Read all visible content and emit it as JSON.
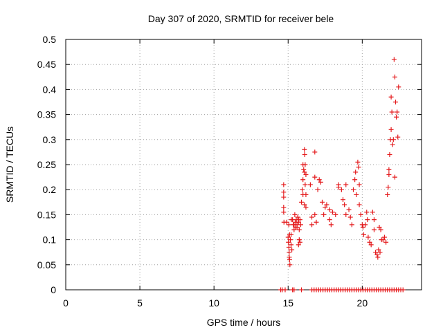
{
  "chart_data": {
    "type": "scatter",
    "title": "Day 307 of 2020, SRMTID for receiver bele",
    "xlabel": "GPS time / hours",
    "ylabel": "SRMTID / TECUs",
    "xlim": [
      0,
      24
    ],
    "ylim": [
      0,
      0.5
    ],
    "xticks": [
      0,
      5,
      10,
      15,
      20
    ],
    "xtick_labels": [
      "0",
      "5",
      "10",
      "15",
      "20"
    ],
    "yticks": [
      0,
      0.05,
      0.1,
      0.15,
      0.2,
      0.25,
      0.3,
      0.35,
      0.4,
      0.45,
      0.5
    ],
    "ytick_labels": [
      "0",
      "0.05",
      "0.1",
      "0.15",
      "0.2",
      "0.25",
      "0.3",
      "0.35",
      "0.4",
      "0.45",
      "0.5"
    ],
    "grid": true,
    "marker": "+",
    "series": [
      {
        "name": "SRMTID",
        "color": "#e41a1c",
        "points": [
          [
            14.5,
            0
          ],
          [
            14.6,
            0
          ],
          [
            14.8,
            0
          ],
          [
            15.3,
            0
          ],
          [
            15.4,
            0
          ],
          [
            15.9,
            0
          ],
          [
            16.6,
            0
          ],
          [
            16.75,
            0
          ],
          [
            16.9,
            0
          ],
          [
            17.05,
            0
          ],
          [
            17.2,
            0
          ],
          [
            17.35,
            0
          ],
          [
            17.5,
            0
          ],
          [
            17.65,
            0
          ],
          [
            17.8,
            0
          ],
          [
            17.95,
            0
          ],
          [
            18.1,
            0
          ],
          [
            18.25,
            0
          ],
          [
            18.4,
            0
          ],
          [
            18.55,
            0
          ],
          [
            18.7,
            0
          ],
          [
            18.85,
            0
          ],
          [
            19.0,
            0
          ],
          [
            19.15,
            0
          ],
          [
            19.3,
            0
          ],
          [
            19.45,
            0
          ],
          [
            19.6,
            0
          ],
          [
            19.75,
            0
          ],
          [
            19.9,
            0
          ],
          [
            20.05,
            0
          ],
          [
            20.2,
            0
          ],
          [
            20.35,
            0
          ],
          [
            20.5,
            0
          ],
          [
            20.65,
            0
          ],
          [
            20.8,
            0
          ],
          [
            20.95,
            0
          ],
          [
            21.1,
            0
          ],
          [
            21.25,
            0
          ],
          [
            21.4,
            0
          ],
          [
            21.55,
            0
          ],
          [
            21.7,
            0
          ],
          [
            21.85,
            0
          ],
          [
            22.0,
            0
          ],
          [
            22.15,
            0
          ],
          [
            22.3,
            0
          ],
          [
            22.45,
            0
          ],
          [
            22.6,
            0
          ],
          [
            22.75,
            0
          ],
          [
            14.7,
            0.21
          ],
          [
            14.7,
            0.195
          ],
          [
            14.7,
            0.185
          ],
          [
            14.7,
            0.165
          ],
          [
            14.7,
            0.155
          ],
          [
            14.72,
            0.135
          ],
          [
            14.9,
            0.135
          ],
          [
            15.0,
            0.105
          ],
          [
            15.02,
            0.095
          ],
          [
            15.05,
            0.085
          ],
          [
            15.07,
            0.075
          ],
          [
            15.08,
            0.065
          ],
          [
            15.1,
            0.06
          ],
          [
            15.12,
            0.05
          ],
          [
            15.1,
            0.11
          ],
          [
            15.15,
            0.1
          ],
          [
            15.2,
            0.11
          ],
          [
            15.2,
            0.09
          ],
          [
            15.25,
            0.08
          ],
          [
            15.22,
            0.14
          ],
          [
            15.05,
            0.13
          ],
          [
            15.3,
            0.14
          ],
          [
            15.35,
            0.13
          ],
          [
            15.4,
            0.12
          ],
          [
            15.45,
            0.15
          ],
          [
            15.5,
            0.125
          ],
          [
            15.55,
            0.14
          ],
          [
            15.6,
            0.13
          ],
          [
            15.65,
            0.145
          ],
          [
            15.7,
            0.135
          ],
          [
            15.75,
            0.12
          ],
          [
            15.8,
            0.14
          ],
          [
            15.85,
            0.13
          ],
          [
            15.4,
            0.13
          ],
          [
            15.5,
            0.135
          ],
          [
            15.6,
            0.125
          ],
          [
            15.7,
            0.14
          ],
          [
            15.75,
            0.1
          ],
          [
            15.8,
            0.095
          ],
          [
            15.7,
            0.09
          ],
          [
            15.9,
            0.175
          ],
          [
            15.95,
            0.2
          ],
          [
            16.0,
            0.22
          ],
          [
            16.0,
            0.25
          ],
          [
            16.05,
            0.24
          ],
          [
            16.1,
            0.28
          ],
          [
            16.12,
            0.27
          ],
          [
            16.15,
            0.25
          ],
          [
            16.1,
            0.235
          ],
          [
            16.2,
            0.23
          ],
          [
            16.15,
            0.21
          ],
          [
            16.2,
            0.19
          ],
          [
            16.0,
            0.19
          ],
          [
            16.1,
            0.17
          ],
          [
            16.2,
            0.165
          ],
          [
            16.5,
            0.21
          ],
          [
            16.6,
            0.145
          ],
          [
            16.6,
            0.13
          ],
          [
            16.8,
            0.15
          ],
          [
            16.9,
            0.135
          ],
          [
            16.8,
            0.275
          ],
          [
            16.8,
            0.225
          ],
          [
            17.0,
            0.2
          ],
          [
            17.1,
            0.22
          ],
          [
            17.2,
            0.215
          ],
          [
            17.3,
            0.175
          ],
          [
            17.5,
            0.165
          ],
          [
            17.4,
            0.15
          ],
          [
            17.6,
            0.17
          ],
          [
            17.8,
            0.14
          ],
          [
            17.9,
            0.13
          ],
          [
            17.8,
            0.16
          ],
          [
            18.0,
            0.155
          ],
          [
            18.2,
            0.15
          ],
          [
            18.4,
            0.21
          ],
          [
            18.4,
            0.205
          ],
          [
            18.6,
            0.2
          ],
          [
            18.7,
            0.18
          ],
          [
            18.8,
            0.17
          ],
          [
            18.9,
            0.15
          ],
          [
            18.9,
            0.21
          ],
          [
            19.1,
            0.16
          ],
          [
            19.2,
            0.145
          ],
          [
            19.3,
            0.13
          ],
          [
            19.4,
            0.2
          ],
          [
            19.5,
            0.22
          ],
          [
            19.55,
            0.235
          ],
          [
            19.6,
            0.19
          ],
          [
            19.7,
            0.255
          ],
          [
            19.75,
            0.245
          ],
          [
            19.8,
            0.21
          ],
          [
            19.8,
            0.17
          ],
          [
            19.9,
            0.15
          ],
          [
            20.0,
            0.13
          ],
          [
            20.05,
            0.125
          ],
          [
            20.1,
            0.11
          ],
          [
            20.2,
            0.13
          ],
          [
            20.3,
            0.155
          ],
          [
            20.35,
            0.14
          ],
          [
            20.4,
            0.105
          ],
          [
            20.5,
            0.095
          ],
          [
            20.6,
            0.09
          ],
          [
            20.7,
            0.155
          ],
          [
            20.8,
            0.14
          ],
          [
            20.8,
            0.12
          ],
          [
            20.9,
            0.075
          ],
          [
            21.0,
            0.07
          ],
          [
            21.05,
            0.065
          ],
          [
            21.1,
            0.08
          ],
          [
            21.2,
            0.075
          ],
          [
            21.15,
            0.125
          ],
          [
            21.25,
            0.12
          ],
          [
            21.3,
            0.1
          ],
          [
            21.4,
            0.1
          ],
          [
            21.5,
            0.105
          ],
          [
            21.6,
            0.095
          ],
          [
            21.7,
            0.19
          ],
          [
            21.75,
            0.205
          ],
          [
            21.8,
            0.24
          ],
          [
            21.85,
            0.27
          ],
          [
            21.9,
            0.3
          ],
          [
            21.95,
            0.32
          ],
          [
            22.0,
            0.355
          ],
          [
            22.05,
            0.29
          ],
          [
            22.1,
            0.3
          ],
          [
            22.15,
            0.46
          ],
          [
            22.2,
            0.425
          ],
          [
            22.25,
            0.375
          ],
          [
            22.3,
            0.345
          ],
          [
            22.35,
            0.355
          ],
          [
            22.4,
            0.305
          ],
          [
            22.45,
            0.405
          ],
          [
            22.2,
            0.225
          ],
          [
            21.95,
            0.385
          ],
          [
            21.8,
            0.23
          ]
        ]
      }
    ]
  }
}
